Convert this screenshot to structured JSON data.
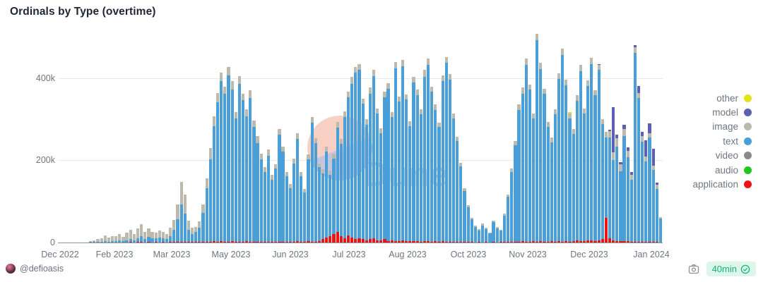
{
  "title": "Ordinals by Type (overtime)",
  "watermark": {
    "text": "Dune"
  },
  "footer": {
    "handle": "@defioasis",
    "refresh_badge": "40min"
  },
  "legend": [
    {
      "label": "other",
      "color": "#e2e319"
    },
    {
      "label": "model",
      "color": "#5b60b4"
    },
    {
      "label": "image",
      "color": "#bdb9ad"
    },
    {
      "label": "text",
      "color": "#4b9fd9"
    },
    {
      "label": "video",
      "color": "#8a8a8a"
    },
    {
      "label": "audio",
      "color": "#1fc71f"
    },
    {
      "label": "application",
      "color": "#ef1414"
    }
  ],
  "chart_data": {
    "type": "bar",
    "stacked": true,
    "title": "Ordinals by Type (overtime)",
    "xlabel": "",
    "ylabel": "",
    "x_axis": {
      "ticks": [
        "Dec 2022",
        "Feb 2023",
        "Mar 2023",
        "May 2023",
        "Jun 2023",
        "Jul 2023",
        "Aug 2023",
        "Oct 2023",
        "Nov 2023",
        "Dec 2023",
        "Jan 2024"
      ]
    },
    "y_axis": {
      "ticks": [
        "0",
        "200k",
        "400k"
      ],
      "unit": "thousands",
      "range_k": [
        0,
        520
      ],
      "grid": true
    },
    "legend_position": "right",
    "series_order_bottom_to_top": [
      "application",
      "text",
      "image",
      "model",
      "other"
    ],
    "colors": {
      "application": "#ef1414",
      "text": "#4b9fd9",
      "image": "#bdb9ad",
      "model": "#5b60b4",
      "other": "#e2e319",
      "video": "#8a8a8a",
      "audio": "#1fc71f"
    },
    "bars_unit": "thousands",
    "bars_note": "daily stacked totals in thousands, order [application, text, image, model, other], Dec 2022 through Jan 2024",
    "bars": [
      [
        0,
        0,
        0,
        0,
        0
      ],
      [
        0,
        0,
        0,
        0,
        0
      ],
      [
        0,
        0,
        0,
        0,
        0
      ],
      [
        0,
        0,
        0,
        0,
        0
      ],
      [
        0,
        0,
        0,
        0,
        0
      ],
      [
        0,
        0,
        0,
        0,
        0
      ],
      [
        0,
        0,
        0,
        0,
        0
      ],
      [
        0,
        0,
        0,
        0,
        0
      ],
      [
        0,
        1,
        3,
        0,
        0
      ],
      [
        0,
        1,
        4,
        0,
        0
      ],
      [
        0,
        2,
        6,
        0,
        0
      ],
      [
        0,
        2,
        8,
        0,
        0
      ],
      [
        0,
        3,
        14,
        0,
        0
      ],
      [
        0,
        2,
        10,
        0,
        0
      ],
      [
        0,
        3,
        12,
        0,
        0
      ],
      [
        0,
        4,
        12,
        0,
        0
      ],
      [
        0,
        5,
        16,
        0,
        0
      ],
      [
        0,
        4,
        10,
        0,
        0
      ],
      [
        0,
        6,
        18,
        0,
        0
      ],
      [
        1,
        8,
        22,
        0,
        0
      ],
      [
        0,
        6,
        14,
        0,
        0
      ],
      [
        1,
        10,
        24,
        0,
        0
      ],
      [
        1,
        14,
        30,
        0,
        0
      ],
      [
        0,
        8,
        18,
        0,
        0
      ],
      [
        1,
        12,
        22,
        0,
        0
      ],
      [
        0,
        10,
        16,
        0,
        0
      ],
      [
        1,
        9,
        14,
        0,
        0
      ],
      [
        0,
        12,
        18,
        0,
        0
      ],
      [
        1,
        10,
        15,
        0,
        0
      ],
      [
        0,
        8,
        12,
        0,
        0
      ],
      [
        1,
        15,
        20,
        0,
        0
      ],
      [
        1,
        30,
        24,
        0,
        0
      ],
      [
        2,
        55,
        35,
        0,
        0
      ],
      [
        2,
        90,
        55,
        0,
        0
      ],
      [
        1,
        70,
        45,
        0,
        0
      ],
      [
        1,
        30,
        22,
        0,
        0
      ],
      [
        1,
        20,
        15,
        0,
        0
      ],
      [
        1,
        25,
        12,
        0,
        0
      ],
      [
        1,
        35,
        15,
        0,
        0
      ],
      [
        2,
        70,
        20,
        0,
        0
      ],
      [
        2,
        130,
        25,
        0,
        0
      ],
      [
        2,
        200,
        28,
        0,
        0
      ],
      [
        3,
        280,
        25,
        0,
        0
      ],
      [
        2,
        340,
        22,
        0,
        0
      ],
      [
        3,
        390,
        20,
        0,
        0
      ],
      [
        2,
        360,
        18,
        0,
        0
      ],
      [
        2,
        405,
        20,
        0,
        0
      ],
      [
        3,
        370,
        20,
        0,
        0
      ],
      [
        2,
        300,
        15,
        0,
        0
      ],
      [
        2,
        385,
        18,
        0,
        0
      ],
      [
        2,
        345,
        15,
        0,
        0
      ],
      [
        3,
        305,
        16,
        0,
        0
      ],
      [
        2,
        350,
        18,
        0,
        0
      ],
      [
        2,
        280,
        15,
        0,
        0
      ],
      [
        2,
        240,
        18,
        0,
        0
      ],
      [
        2,
        200,
        15,
        0,
        0
      ],
      [
        1,
        170,
        12,
        0,
        0
      ],
      [
        2,
        210,
        14,
        0,
        0
      ],
      [
        2,
        150,
        12,
        0,
        0
      ],
      [
        1,
        180,
        10,
        0,
        0
      ],
      [
        2,
        260,
        14,
        0,
        0
      ],
      [
        2,
        220,
        12,
        0,
        0
      ],
      [
        1,
        160,
        10,
        0,
        0
      ],
      [
        2,
        130,
        10,
        0,
        0
      ],
      [
        2,
        190,
        12,
        0,
        0
      ],
      [
        3,
        250,
        14,
        0,
        0
      ],
      [
        2,
        160,
        10,
        0,
        0
      ],
      [
        2,
        120,
        8,
        0,
        0
      ],
      [
        3,
        200,
        12,
        0,
        0
      ],
      [
        2,
        290,
        14,
        0,
        0
      ],
      [
        2,
        240,
        12,
        0,
        0
      ],
      [
        3,
        180,
        10,
        0,
        0
      ],
      [
        8,
        160,
        10,
        0,
        0
      ],
      [
        12,
        210,
        12,
        0,
        0
      ],
      [
        15,
        150,
        10,
        0,
        0
      ],
      [
        20,
        185,
        12,
        0,
        0
      ],
      [
        25,
        255,
        14,
        0,
        0
      ],
      [
        15,
        225,
        12,
        0,
        0
      ],
      [
        10,
        295,
        15,
        0,
        0
      ],
      [
        18,
        335,
        14,
        0,
        0
      ],
      [
        12,
        375,
        16,
        0,
        0
      ],
      [
        8,
        405,
        15,
        0,
        0
      ],
      [
        10,
        410,
        14,
        0,
        0
      ],
      [
        8,
        330,
        12,
        0,
        0
      ],
      [
        6,
        280,
        14,
        0,
        0
      ],
      [
        8,
        355,
        14,
        0,
        0
      ],
      [
        10,
        395,
        15,
        0,
        0
      ],
      [
        5,
        310,
        12,
        0,
        0
      ],
      [
        6,
        260,
        12,
        0,
        0
      ],
      [
        8,
        345,
        15,
        0,
        0
      ],
      [
        4,
        370,
        14,
        0,
        0
      ],
      [
        5,
        300,
        12,
        0,
        0
      ],
      [
        4,
        420,
        16,
        0,
        0
      ],
      [
        3,
        340,
        12,
        0,
        0
      ],
      [
        5,
        425,
        15,
        0,
        0
      ],
      [
        4,
        345,
        12,
        0,
        0
      ],
      [
        3,
        280,
        13,
        0,
        0
      ],
      [
        4,
        385,
        15,
        0,
        0
      ],
      [
        3,
        355,
        14,
        0,
        0
      ],
      [
        2,
        310,
        12,
        0,
        0
      ],
      [
        4,
        400,
        16,
        0,
        0
      ],
      [
        3,
        430,
        15,
        0,
        0
      ],
      [
        2,
        365,
        12,
        0,
        0
      ],
      [
        3,
        320,
        13,
        0,
        0
      ],
      [
        2,
        280,
        10,
        0,
        0
      ],
      [
        3,
        390,
        14,
        0,
        0
      ],
      [
        2,
        435,
        15,
        0,
        0
      ],
      [
        2,
        395,
        14,
        0,
        0
      ],
      [
        2,
        300,
        12,
        0,
        0
      ],
      [
        2,
        245,
        10,
        0,
        0
      ],
      [
        1,
        185,
        8,
        0,
        0
      ],
      [
        1,
        125,
        6,
        0,
        0
      ],
      [
        1,
        85,
        5,
        0,
        0
      ],
      [
        1,
        55,
        4,
        0,
        0
      ],
      [
        0,
        38,
        3,
        0,
        0
      ],
      [
        1,
        28,
        3,
        0,
        0
      ],
      [
        0,
        42,
        4,
        0,
        0
      ],
      [
        1,
        32,
        3,
        0,
        0
      ],
      [
        0,
        22,
        2,
        0,
        0
      ],
      [
        1,
        48,
        4,
        0,
        0
      ],
      [
        0,
        35,
        3,
        0,
        0
      ],
      [
        1,
        28,
        2,
        0,
        0
      ],
      [
        1,
        65,
        4,
        0,
        0
      ],
      [
        1,
        110,
        6,
        0,
        0
      ],
      [
        2,
        170,
        8,
        0,
        0
      ],
      [
        2,
        235,
        10,
        0,
        0
      ],
      [
        2,
        320,
        14,
        0,
        0
      ],
      [
        3,
        360,
        15,
        0,
        0
      ],
      [
        2,
        430,
        16,
        0,
        0
      ],
      [
        2,
        370,
        13,
        0,
        0
      ],
      [
        3,
        300,
        12,
        0,
        0
      ],
      [
        2,
        490,
        16,
        0,
        0
      ],
      [
        3,
        420,
        14,
        0,
        0
      ],
      [
        2,
        360,
        12,
        0,
        0
      ],
      [
        2,
        280,
        11,
        0,
        0
      ],
      [
        3,
        240,
        12,
        0,
        0
      ],
      [
        2,
        310,
        13,
        0,
        0
      ],
      [
        3,
        395,
        14,
        0,
        0
      ],
      [
        2,
        455,
        15,
        0,
        0
      ],
      [
        3,
        380,
        14,
        0,
        0
      ],
      [
        2,
        300,
        12,
        0,
        4
      ],
      [
        4,
        260,
        13,
        0,
        0
      ],
      [
        5,
        340,
        14,
        0,
        0
      ],
      [
        3,
        415,
        15,
        0,
        0
      ],
      [
        4,
        310,
        12,
        0,
        0
      ],
      [
        6,
        375,
        14,
        0,
        0
      ],
      [
        5,
        430,
        14,
        0,
        0
      ],
      [
        4,
        355,
        12,
        0,
        0
      ],
      [
        5,
        415,
        13,
        2,
        0
      ],
      [
        8,
        280,
        12,
        0,
        0
      ],
      [
        60,
        195,
        14,
        0,
        0
      ],
      [
        10,
        245,
        16,
        4,
        0
      ],
      [
        6,
        195,
        18,
        110,
        0
      ],
      [
        4,
        230,
        20,
        8,
        0
      ],
      [
        3,
        170,
        17,
        6,
        0
      ],
      [
        4,
        255,
        18,
        10,
        0
      ],
      [
        3,
        205,
        15,
        8,
        0
      ],
      [
        2,
        150,
        13,
        6,
        0
      ],
      [
        2,
        460,
        14,
        5,
        0
      ],
      [
        2,
        350,
        12,
        18,
        0
      ],
      [
        1,
        245,
        13,
        10,
        0
      ],
      [
        2,
        195,
        12,
        40,
        0
      ],
      [
        1,
        255,
        10,
        25,
        0
      ],
      [
        1,
        175,
        12,
        40,
        0
      ],
      [
        1,
        130,
        10,
        5,
        0
      ],
      [
        0,
        58,
        4,
        0,
        0
      ]
    ]
  }
}
